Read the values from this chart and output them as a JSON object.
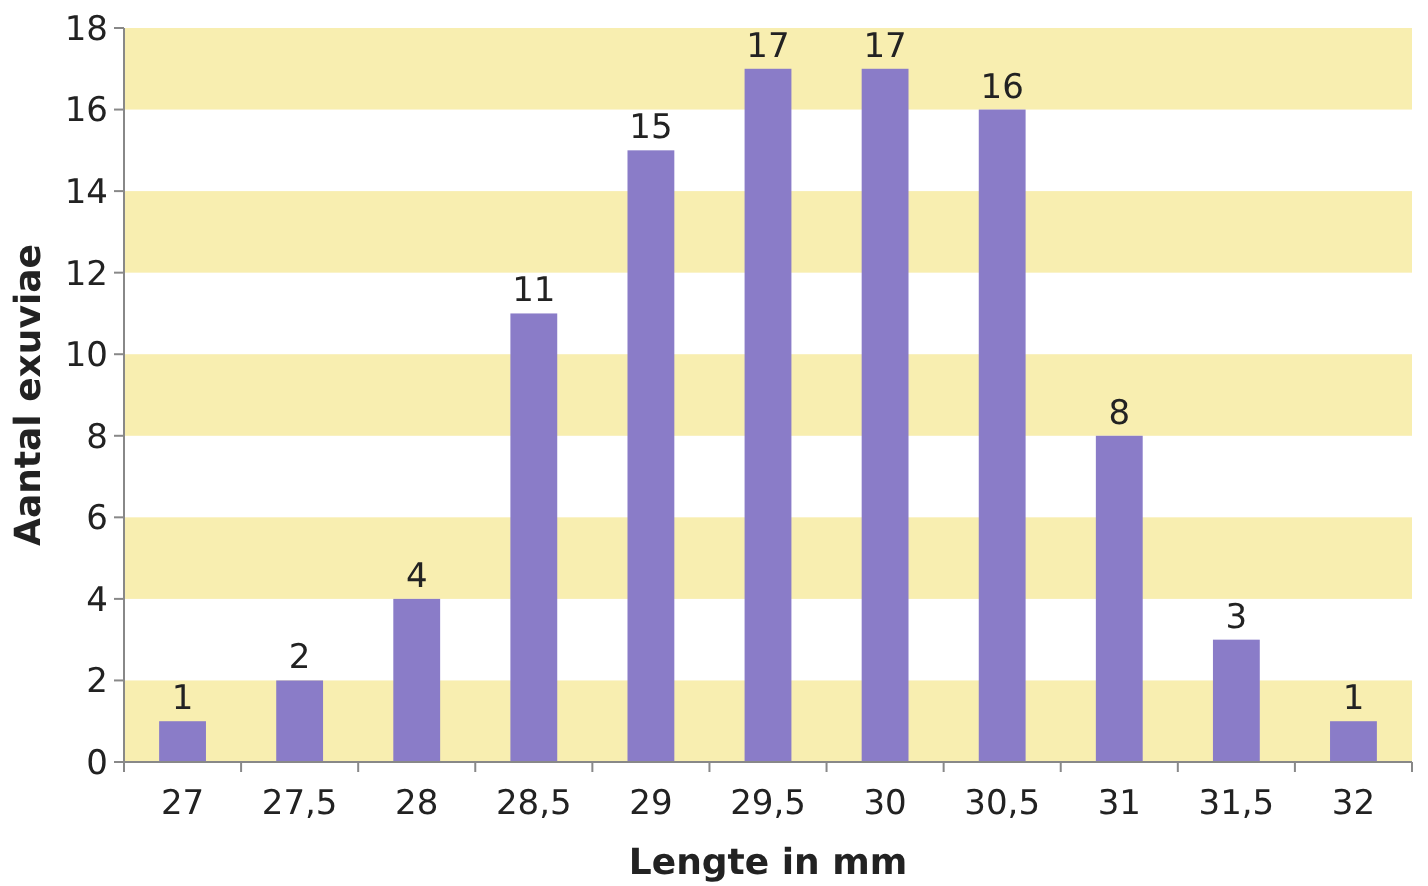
{
  "chart_data": {
    "type": "bar",
    "xlabel": "Lengte in mm",
    "ylabel": "Aantal exuviae",
    "categories": [
      "27",
      "27,5",
      "28",
      "28,5",
      "29",
      "29,5",
      "30",
      "30,5",
      "31",
      "31,5",
      "32"
    ],
    "values": [
      1,
      2,
      4,
      11,
      15,
      17,
      17,
      16,
      8,
      3,
      1
    ],
    "color": "#8a7cc8",
    "ylim": [
      0,
      18
    ],
    "yticks": [
      0,
      2,
      4,
      6,
      8,
      10,
      12,
      14,
      16,
      18
    ],
    "data_labels": true,
    "bands": [
      {
        "axis": "y",
        "from": 0,
        "to": 2,
        "color": "#f8eeb0"
      },
      {
        "axis": "y",
        "from": 4,
        "to": 6,
        "color": "#f8eeb0"
      },
      {
        "axis": "y",
        "from": 8,
        "to": 10,
        "color": "#f8eeb0"
      },
      {
        "axis": "y",
        "from": 12,
        "to": 14,
        "color": "#f8eeb0"
      },
      {
        "axis": "y",
        "from": 16,
        "to": 18,
        "color": "#f8eeb0"
      }
    ]
  }
}
